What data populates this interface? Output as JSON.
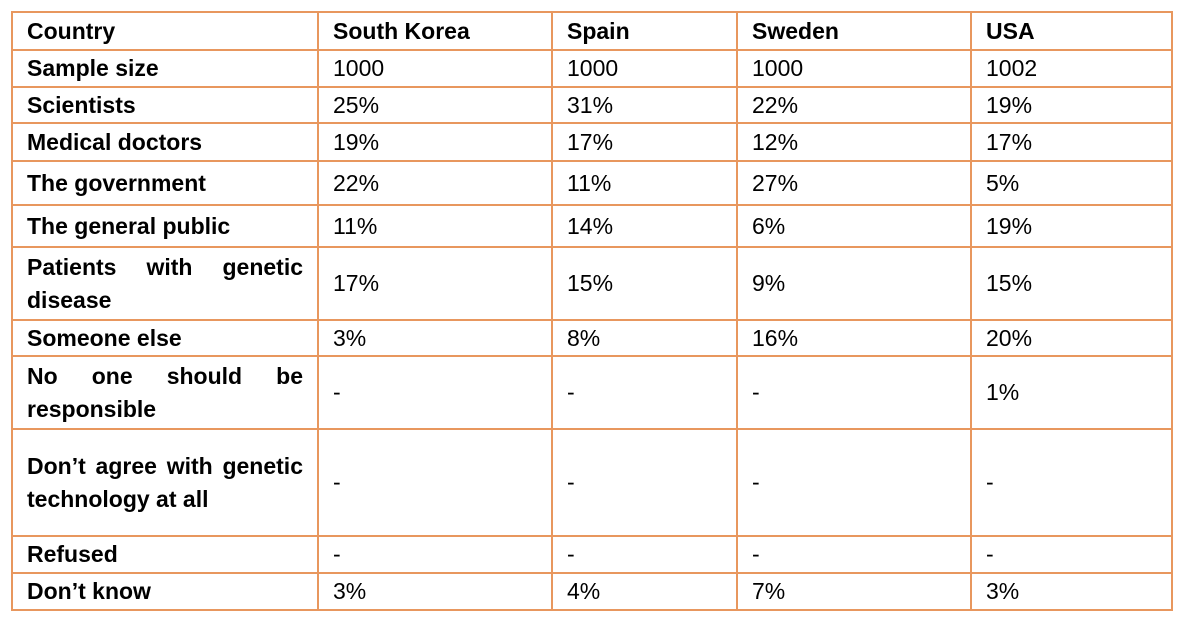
{
  "table": {
    "headers": [
      "Country",
      "South Korea",
      "Spain",
      "Sweden",
      "USA"
    ],
    "rows": [
      {
        "label": "Sample size",
        "values": [
          "1000",
          "1000",
          "1000",
          "1002"
        ]
      },
      {
        "label": "Scientists",
        "values": [
          "25%",
          "31%",
          "22%",
          "19%"
        ]
      },
      {
        "label": "Medical doctors",
        "values": [
          "19%",
          "17%",
          "12%",
          "17%"
        ]
      },
      {
        "label": "The government",
        "values": [
          "22%",
          "11%",
          "27%",
          "5%"
        ]
      },
      {
        "label": "The general public",
        "values": [
          "11%",
          "14%",
          "6%",
          "19%"
        ]
      },
      {
        "label": "Patients with genetic disease",
        "values": [
          "17%",
          "15%",
          "9%",
          "15%"
        ]
      },
      {
        "label": "Someone else",
        "values": [
          "3%",
          "8%",
          "16%",
          "20%"
        ]
      },
      {
        "label": "No one should be responsible",
        "values": [
          "-",
          "-",
          "-",
          "1%"
        ]
      },
      {
        "label": "Don’t agree with genetic technology at all",
        "values": [
          "-",
          "-",
          "-",
          "-"
        ]
      },
      {
        "label": "Refused",
        "values": [
          "-",
          "-",
          "-",
          "-"
        ]
      },
      {
        "label": "Don’t know",
        "values": [
          "3%",
          "4%",
          "7%",
          "3%"
        ]
      }
    ]
  },
  "colors": {
    "border": "#E8975E"
  }
}
